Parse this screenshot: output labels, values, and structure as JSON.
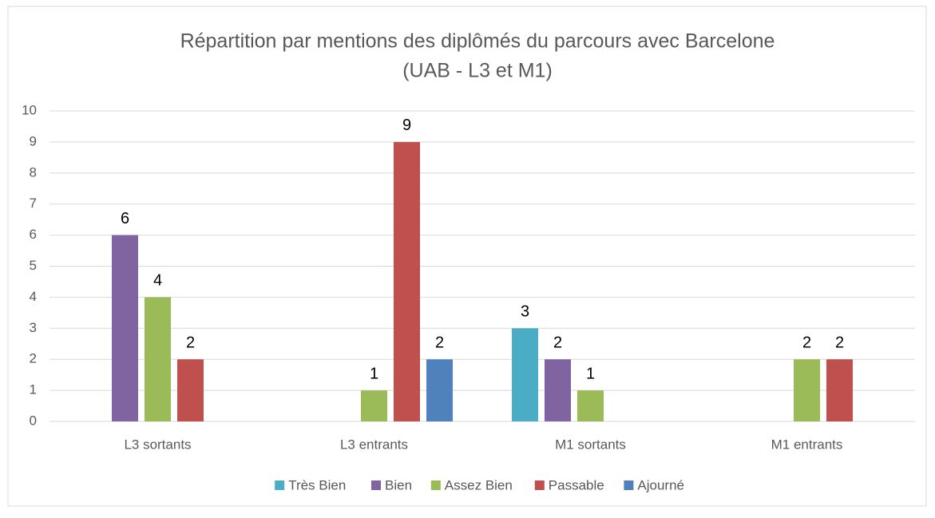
{
  "chart_data": {
    "type": "bar",
    "title": [
      "Répartition par mentions des diplômés du parcours avec Barcelone",
      "(UAB - L3 et M1)"
    ],
    "categories": [
      "L3 sortants",
      "L3 entrants",
      "M1 sortants",
      "M1 entrants"
    ],
    "series": [
      {
        "name": "Très Bien",
        "color": "#4bacc6",
        "values": [
          null,
          null,
          3,
          null
        ]
      },
      {
        "name": "Bien",
        "color": "#8064a2",
        "values": [
          6,
          null,
          2,
          null
        ]
      },
      {
        "name": "Assez Bien",
        "color": "#9bbb59",
        "values": [
          4,
          1,
          1,
          2
        ]
      },
      {
        "name": "Passable",
        "color": "#c0504d",
        "values": [
          2,
          9,
          null,
          2
        ]
      },
      {
        "name": "Ajourné",
        "color": "#4f81bd",
        "values": [
          null,
          2,
          null,
          null
        ]
      }
    ],
    "ylim": [
      0,
      10
    ],
    "yticks": [
      0,
      1,
      2,
      3,
      4,
      5,
      6,
      7,
      8,
      9,
      10
    ],
    "grid": true,
    "legend": "bottom"
  }
}
